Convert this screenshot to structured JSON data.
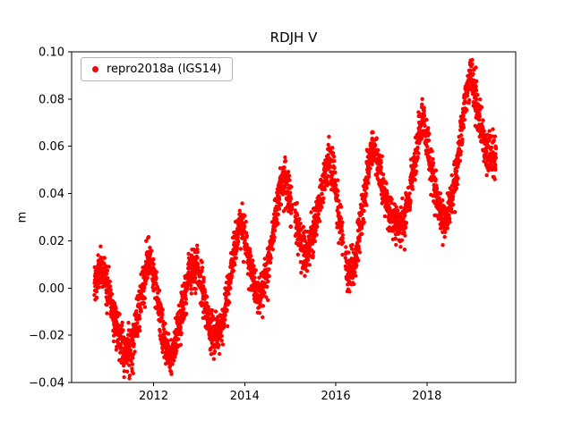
{
  "chart_data": {
    "type": "scatter",
    "title": "RDJH V",
    "xlabel": "",
    "ylabel": "m",
    "xlim": [
      2010.2,
      2019.95
    ],
    "ylim": [
      -0.04,
      0.1
    ],
    "xticks": [
      2012,
      2014,
      2016,
      2018
    ],
    "yticks": [
      -0.04,
      -0.02,
      0.0,
      0.02,
      0.04,
      0.06,
      0.08,
      0.1
    ],
    "grid": false,
    "legend": {
      "label": "repro2018a (IGS14)",
      "position": "upper-left",
      "marker": "red-dot"
    },
    "series": [
      {
        "name": "repro2018a (IGS14)",
        "color": "#ff0000",
        "marker": "circle",
        "marker_radius": 2.2,
        "points_per_year": 365,
        "noise_std": 0.0045,
        "gaps": [
          [
            2015.04,
            2015.1
          ],
          [
            2016.16,
            2016.21
          ]
        ],
        "anchors": [
          [
            2010.7,
            0.0
          ],
          [
            2010.78,
            0.006
          ],
          [
            2010.88,
            0.007
          ],
          [
            2010.96,
            0.003
          ],
          [
            2011.05,
            -0.004
          ],
          [
            2011.15,
            -0.013
          ],
          [
            2011.25,
            -0.02
          ],
          [
            2011.35,
            -0.026
          ],
          [
            2011.45,
            -0.027
          ],
          [
            2011.55,
            -0.022
          ],
          [
            2011.65,
            -0.013
          ],
          [
            2011.75,
            -0.003
          ],
          [
            2011.85,
            0.01
          ],
          [
            2011.92,
            0.013
          ],
          [
            2012.0,
            0.006
          ],
          [
            2012.1,
            -0.008
          ],
          [
            2012.2,
            -0.019
          ],
          [
            2012.3,
            -0.027
          ],
          [
            2012.38,
            -0.028
          ],
          [
            2012.48,
            -0.022
          ],
          [
            2012.58,
            -0.014
          ],
          [
            2012.68,
            -0.004
          ],
          [
            2012.78,
            0.006
          ],
          [
            2012.88,
            0.01
          ],
          [
            2012.97,
            0.009
          ],
          [
            2013.05,
            0.001
          ],
          [
            2013.15,
            -0.01
          ],
          [
            2013.25,
            -0.018
          ],
          [
            2013.35,
            -0.021
          ],
          [
            2013.45,
            -0.018
          ],
          [
            2013.55,
            -0.011
          ],
          [
            2013.65,
            0.0
          ],
          [
            2013.75,
            0.013
          ],
          [
            2013.85,
            0.024
          ],
          [
            2013.93,
            0.029
          ],
          [
            2014.0,
            0.022
          ],
          [
            2014.1,
            0.01
          ],
          [
            2014.2,
            0.002
          ],
          [
            2014.3,
            -0.002
          ],
          [
            2014.4,
            0.001
          ],
          [
            2014.5,
            0.009
          ],
          [
            2014.6,
            0.021
          ],
          [
            2014.7,
            0.034
          ],
          [
            2014.8,
            0.044
          ],
          [
            2014.88,
            0.048
          ],
          [
            2014.96,
            0.042
          ],
          [
            2015.05,
            0.033
          ],
          [
            2015.15,
            0.024
          ],
          [
            2015.25,
            0.017
          ],
          [
            2015.35,
            0.015
          ],
          [
            2015.45,
            0.02
          ],
          [
            2015.55,
            0.028
          ],
          [
            2015.65,
            0.038
          ],
          [
            2015.75,
            0.047
          ],
          [
            2015.85,
            0.053
          ],
          [
            2015.93,
            0.051
          ],
          [
            2016.0,
            0.042
          ],
          [
            2016.1,
            0.027
          ],
          [
            2016.2,
            0.013
          ],
          [
            2016.3,
            0.005
          ],
          [
            2016.4,
            0.009
          ],
          [
            2016.5,
            0.021
          ],
          [
            2016.6,
            0.035
          ],
          [
            2016.7,
            0.049
          ],
          [
            2016.8,
            0.059
          ],
          [
            2016.88,
            0.057
          ],
          [
            2016.96,
            0.05
          ],
          [
            2017.05,
            0.042
          ],
          [
            2017.15,
            0.034
          ],
          [
            2017.25,
            0.029
          ],
          [
            2017.35,
            0.026
          ],
          [
            2017.45,
            0.027
          ],
          [
            2017.55,
            0.033
          ],
          [
            2017.65,
            0.043
          ],
          [
            2017.75,
            0.056
          ],
          [
            2017.85,
            0.068
          ],
          [
            2017.92,
            0.073
          ],
          [
            2018.0,
            0.063
          ],
          [
            2018.1,
            0.05
          ],
          [
            2018.2,
            0.04
          ],
          [
            2018.3,
            0.032
          ],
          [
            2018.4,
            0.028
          ],
          [
            2018.5,
            0.034
          ],
          [
            2018.6,
            0.044
          ],
          [
            2018.7,
            0.058
          ],
          [
            2018.8,
            0.073
          ],
          [
            2018.9,
            0.086
          ],
          [
            2018.97,
            0.091
          ],
          [
            2019.05,
            0.082
          ],
          [
            2019.15,
            0.071
          ],
          [
            2019.25,
            0.061
          ],
          [
            2019.35,
            0.056
          ],
          [
            2019.45,
            0.056
          ],
          [
            2019.52,
            0.058
          ]
        ]
      }
    ]
  }
}
